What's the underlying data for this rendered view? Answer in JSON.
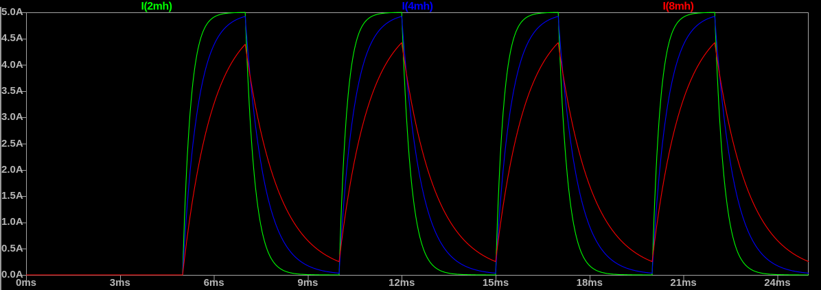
{
  "window": {
    "background": "#000000",
    "axis_line_color": "#a6a6a6",
    "axis_text_color": "#b6b6b6"
  },
  "chart_data": {
    "type": "line",
    "title": "",
    "grid": false,
    "legend_position": "top",
    "x_axis": {
      "unit": "ms",
      "min": 0,
      "max": 25,
      "tick_step": 3,
      "tick_labels": [
        "0ms",
        "3ms",
        "6ms",
        "9ms",
        "12ms",
        "15ms",
        "18ms",
        "21ms",
        "24ms"
      ]
    },
    "y_axis": {
      "unit": "A",
      "min": 0,
      "max": 5,
      "tick_step": 0.5,
      "tick_labels_top_to_bottom": [
        "5.0A",
        "4.5A",
        "4.0A",
        "3.5A",
        "3.0A",
        "2.5A",
        "2.0A",
        "1.5A",
        "1.0A",
        "0.5A",
        "0.0A"
      ]
    },
    "excitation": {
      "shape": "periodic-pulse",
      "first_rise_ms": 5,
      "period_ms": 5,
      "on_ms": 2,
      "steady_amplitude_a": 5
    },
    "series": [
      {
        "name": "I(2mh)",
        "color": "#00ff00",
        "tau_rise_ms": 0.25,
        "tau_fall_ms": 0.3,
        "peak_a": 5.0,
        "min_a": 0.0
      },
      {
        "name": "I(4mh)",
        "color": "#0000ff",
        "tau_rise_ms": 0.48,
        "tau_fall_ms": 0.6,
        "peak_a": 4.93,
        "min_a": 0.03
      },
      {
        "name": "I(8mh)",
        "color": "#ff0000",
        "tau_rise_ms": 0.95,
        "tau_fall_ms": 1.05,
        "peak_a": 4.4,
        "min_a": 0.26
      }
    ]
  }
}
